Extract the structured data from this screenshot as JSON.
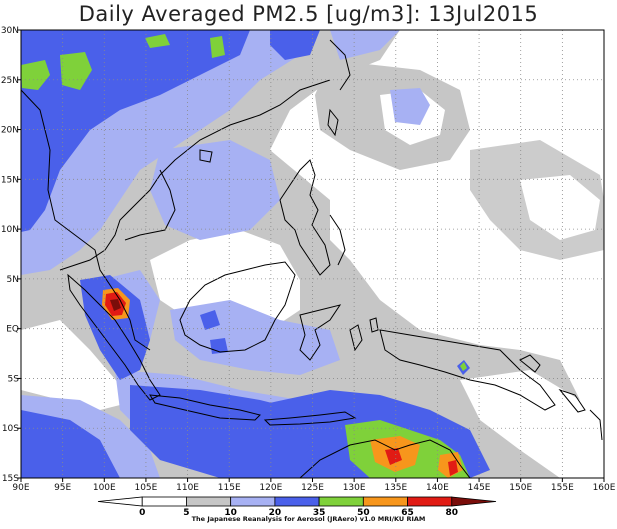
{
  "title": "Daily Averaged PM2.5 [ug/m3]: 13Jul2015",
  "map": {
    "lat_labels": [
      "30N",
      "25N",
      "20N",
      "15N",
      "10N",
      "5N",
      "EQ",
      "5S",
      "10S",
      "15S"
    ],
    "lon_labels": [
      "90E",
      "95E",
      "100E",
      "105E",
      "110E",
      "115E",
      "120E",
      "125E",
      "130E",
      "135E",
      "140E",
      "145E",
      "150E",
      "155E",
      "160E"
    ],
    "lon_range": [
      90,
      160
    ],
    "lat_range": [
      -15,
      30
    ],
    "grid": true,
    "grid_style": "dotted"
  },
  "colorbar": {
    "levels": [
      "0",
      "5",
      "10",
      "20",
      "35",
      "50",
      "65",
      "80"
    ],
    "colors": [
      "#ffffff",
      "#ffffff",
      "#c6c6c6",
      "#a7b1f3",
      "#4a60ea",
      "#7fd13a",
      "#f7961c",
      "#e11b14",
      "#7a0d0a"
    ]
  },
  "credit": "The Japanese Reanalysis for Aerosol (JRAero) v1.0 MRI/KU RIAM"
}
